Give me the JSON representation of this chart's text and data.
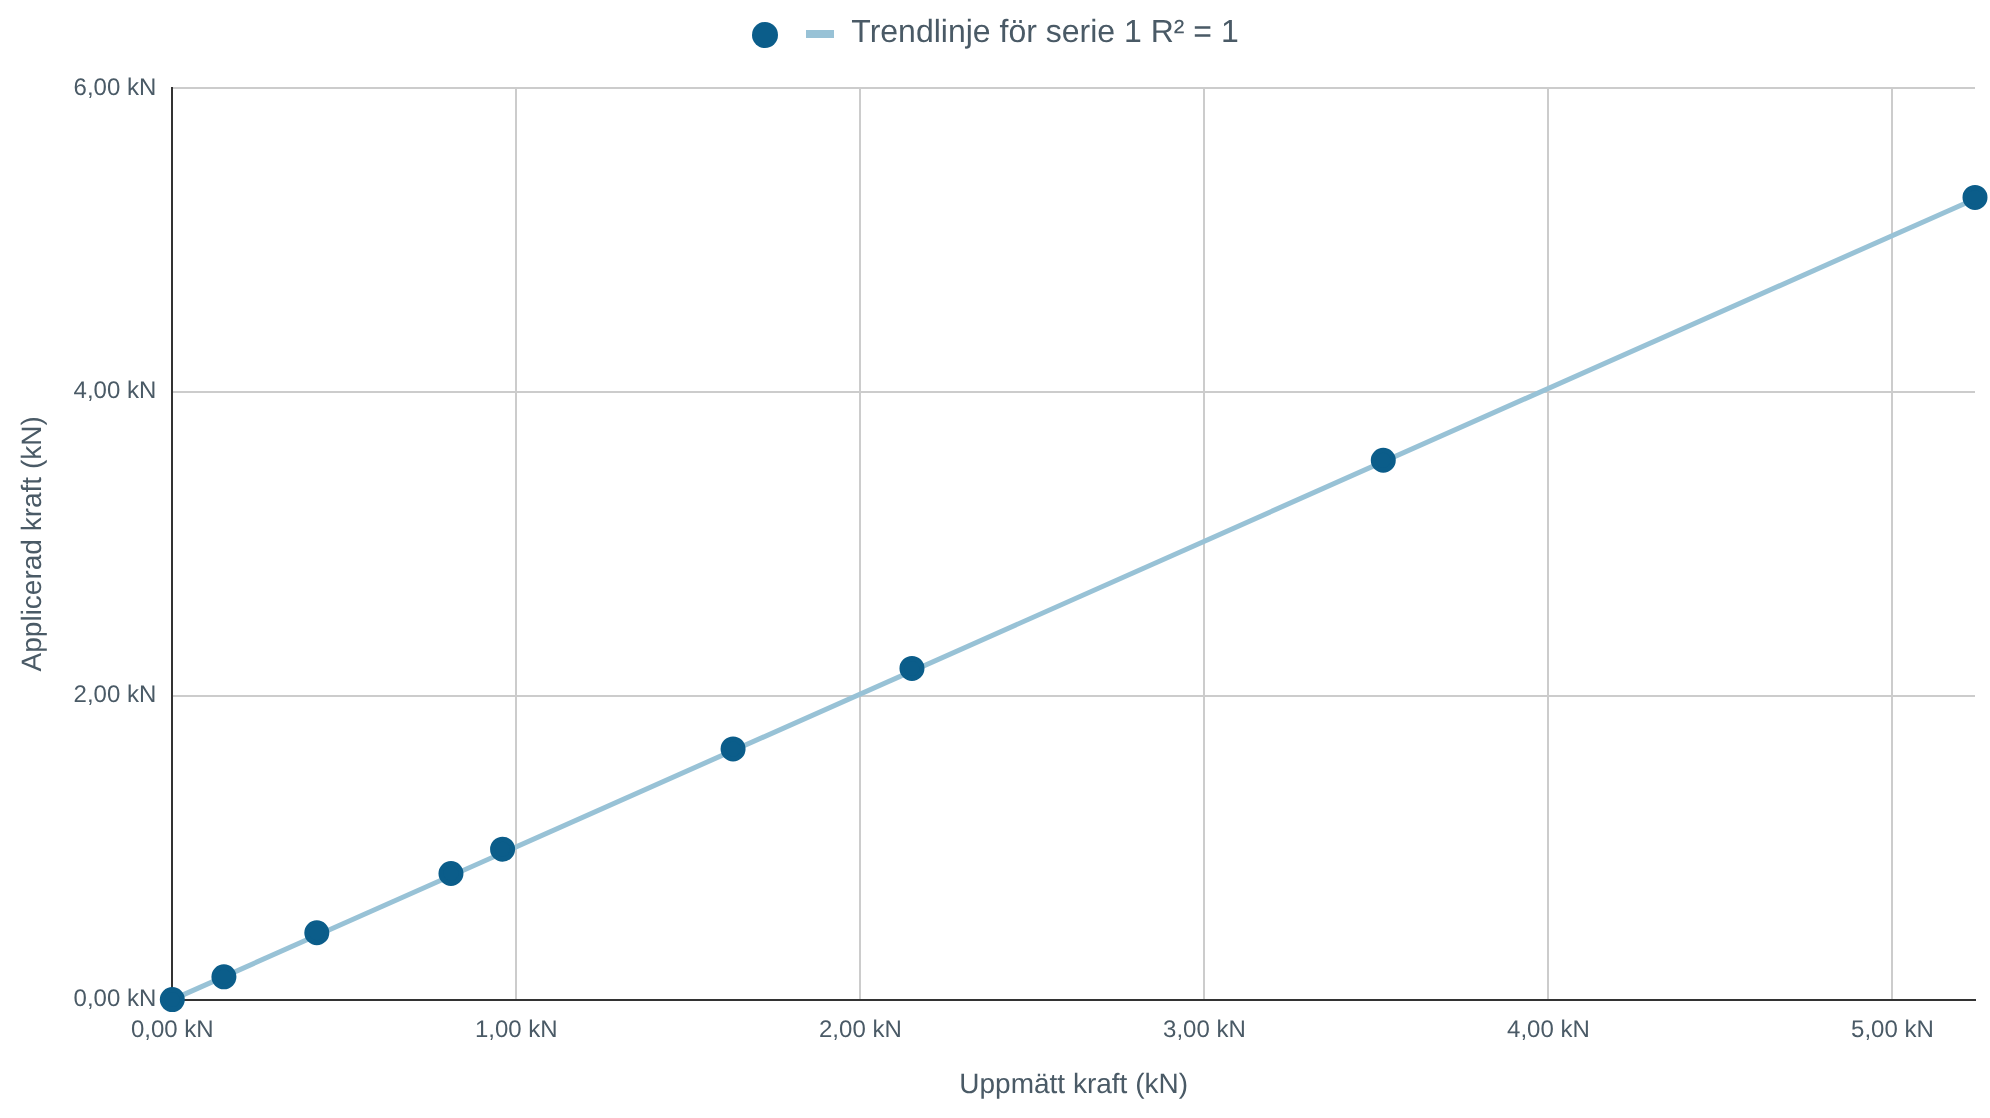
{
  "chart_data": {
    "type": "scatter",
    "xlabel": "Uppmätt kraft (kN)",
    "ylabel": "Applicerad kraft (kN)",
    "legend": "top",
    "grid": true,
    "marker": "circle",
    "xlim": [
      0,
      5.24
    ],
    "ylim": [
      0,
      6
    ],
    "xticks": [
      {
        "value": 0,
        "label": "0,00 kN"
      },
      {
        "value": 1,
        "label": "1,00 kN"
      },
      {
        "value": 2,
        "label": "2,00 kN"
      },
      {
        "value": 3,
        "label": "3,00 kN"
      },
      {
        "value": 4,
        "label": "4,00 kN"
      },
      {
        "value": 5,
        "label": "5,00 kN"
      }
    ],
    "yticks": [
      {
        "value": 0,
        "label": "0,00 kN"
      },
      {
        "value": 2,
        "label": "2,00 kN"
      },
      {
        "value": 4,
        "label": "4,00 kN"
      },
      {
        "value": 6,
        "label": "6,00 kN"
      }
    ],
    "series": [
      {
        "type": "scatter",
        "color": "#0b5d8a",
        "x": [
          0,
          0.15,
          0.42,
          0.81,
          0.96,
          1.63,
          2.15,
          3.52,
          5.24
        ],
        "values": [
          0,
          0.15,
          0.44,
          0.83,
          0.99,
          1.65,
          2.18,
          3.55,
          5.28
        ]
      },
      {
        "type": "line",
        "name": "Trendlinje för serie 1 R² = 1",
        "color": "#98c2d6",
        "marker": "none",
        "x": [
          0,
          5.24
        ],
        "values": [
          0,
          5.27
        ]
      }
    ]
  }
}
